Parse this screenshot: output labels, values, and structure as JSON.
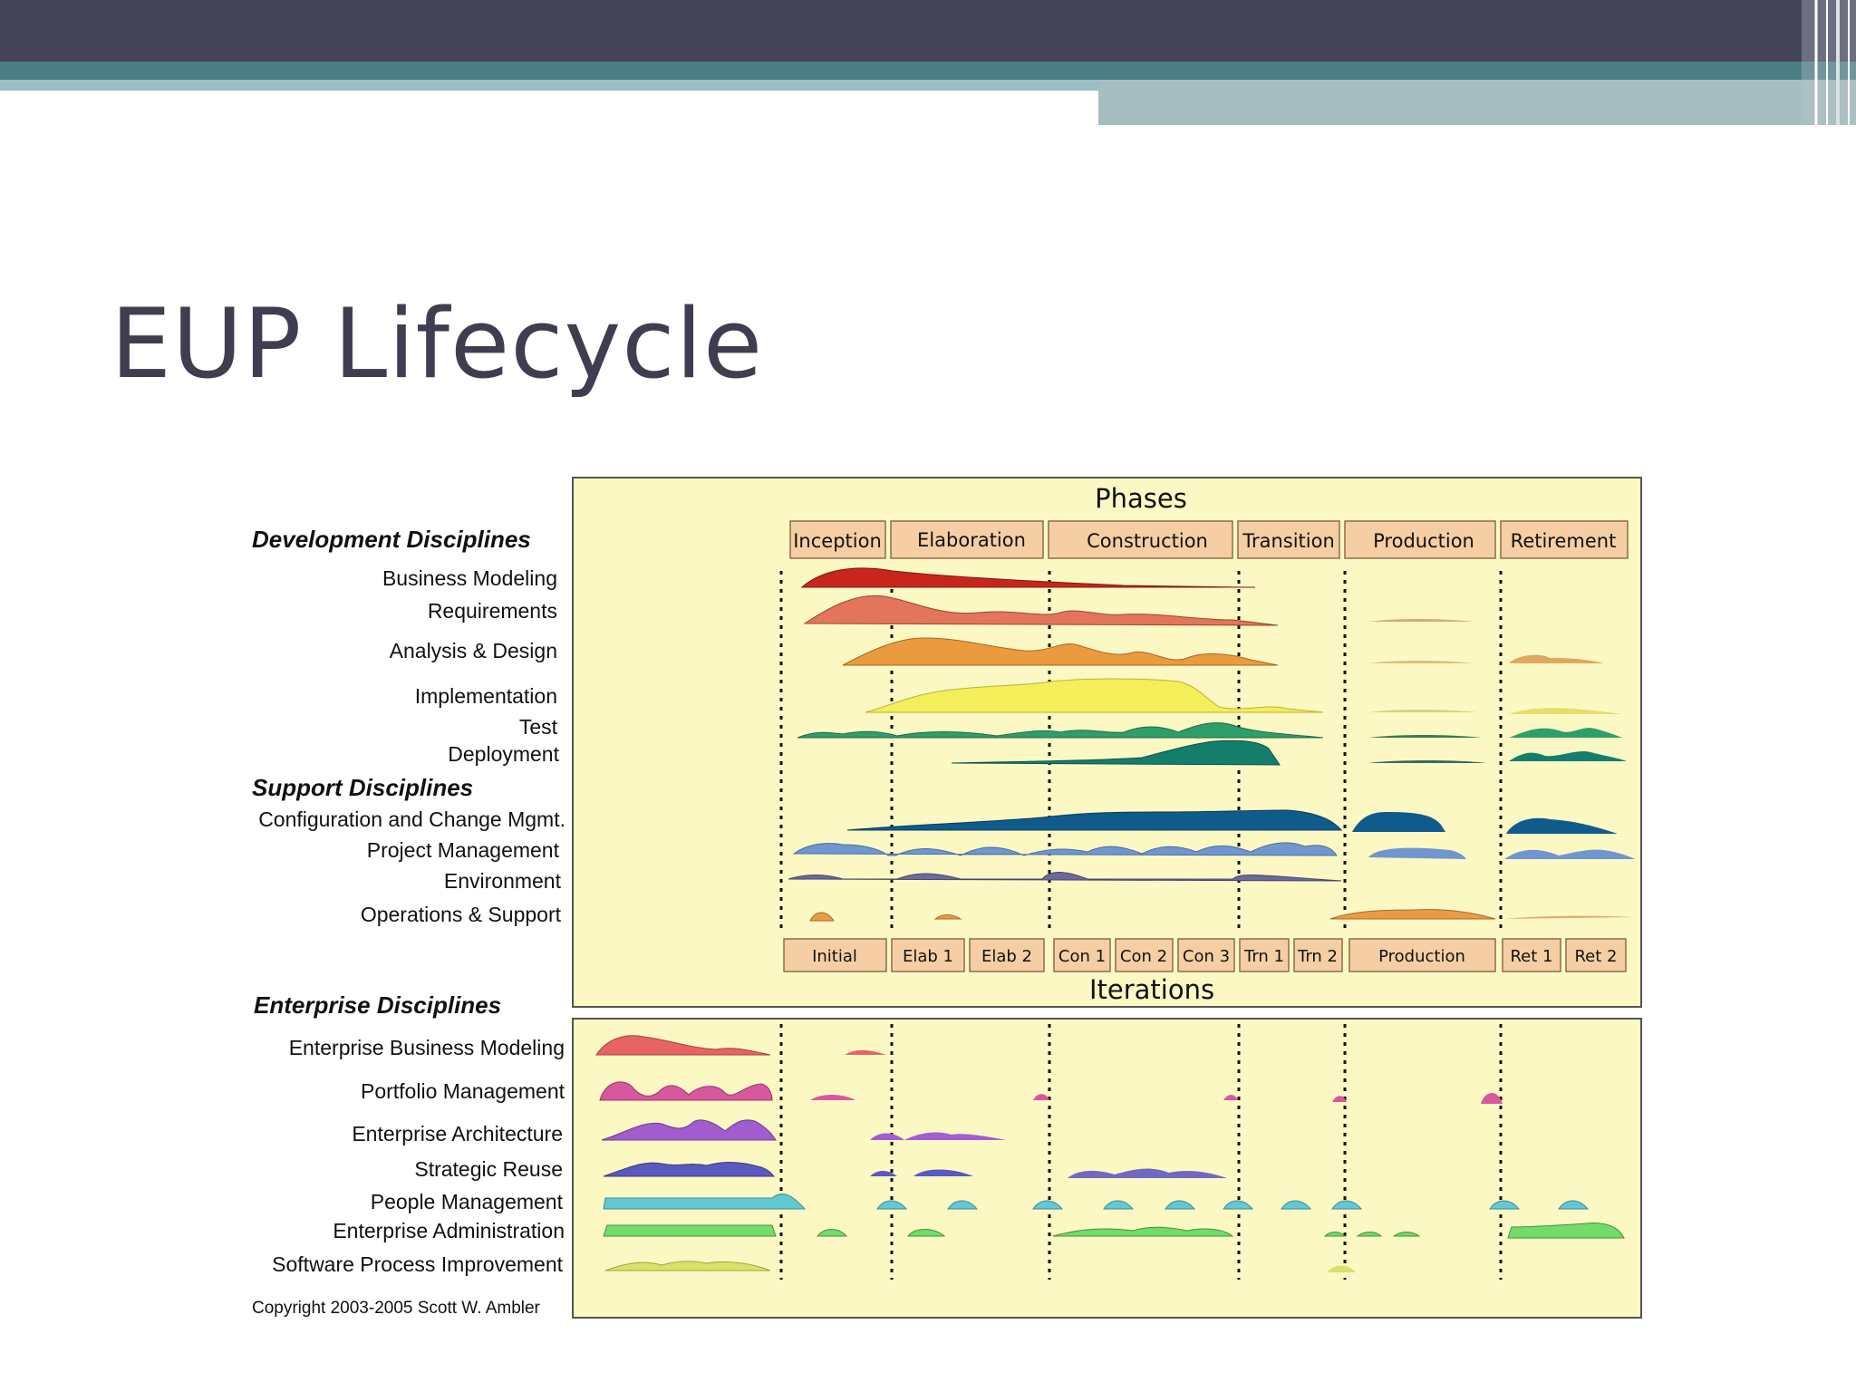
{
  "slide": {
    "title": "EUP Lifecycle"
  },
  "diagram": {
    "phases_title": "Phases",
    "iterations_title": "Iterations",
    "phases": [
      "Inception",
      "Elaboration",
      "Construction",
      "Transition",
      "Production",
      "Retirement"
    ],
    "iterations": [
      "Initial",
      "Elab 1",
      "Elab 2",
      "Con 1",
      "Con 2",
      "Con 3",
      "Trn 1",
      "Trn 2",
      "Production",
      "Ret 1",
      "Ret 2"
    ],
    "development_heading": "Development Disciplines",
    "development": [
      "Business Modeling",
      "Requirements",
      "Analysis & Design",
      "Implementation",
      "Test",
      "Deployment"
    ],
    "support_heading": "Support Disciplines",
    "support": [
      "Configuration and Change Mgmt.",
      "Project Management",
      "Environment",
      "Operations & Support"
    ],
    "enterprise_heading": "Enterprise Disciplines",
    "enterprise": [
      "Enterprise Business Modeling",
      "Portfolio Management",
      "Enterprise Architecture",
      "Strategic Reuse",
      "People Management",
      "Enterprise Administration",
      "Software Process Improvement"
    ],
    "copyright": "Copyright 2003-2005 Scott W. Ambler"
  },
  "colors": {
    "panel_background": "#fbf8c4",
    "phase_box": "#f5cfa3",
    "business_modeling": "#c8261c",
    "requirements": "#e3765a",
    "analysis_design": "#eb9b3e",
    "implementation": "#f3ee5a",
    "test": "#2e9e6a",
    "deployment": "#137e6c",
    "config_change": "#0f5b8c",
    "project_management": "#6f96cf",
    "environment": "#6b6a9c",
    "operations_support": "#e99c48",
    "enterprise_business_modeling": "#e86464",
    "portfolio_management": "#d9579f",
    "enterprise_architecture": "#a25cd0",
    "strategic_reuse": "#5b58c0",
    "people_management": "#63c7d4",
    "enterprise_administration": "#72db69",
    "software_process_improvement": "#dde068"
  }
}
